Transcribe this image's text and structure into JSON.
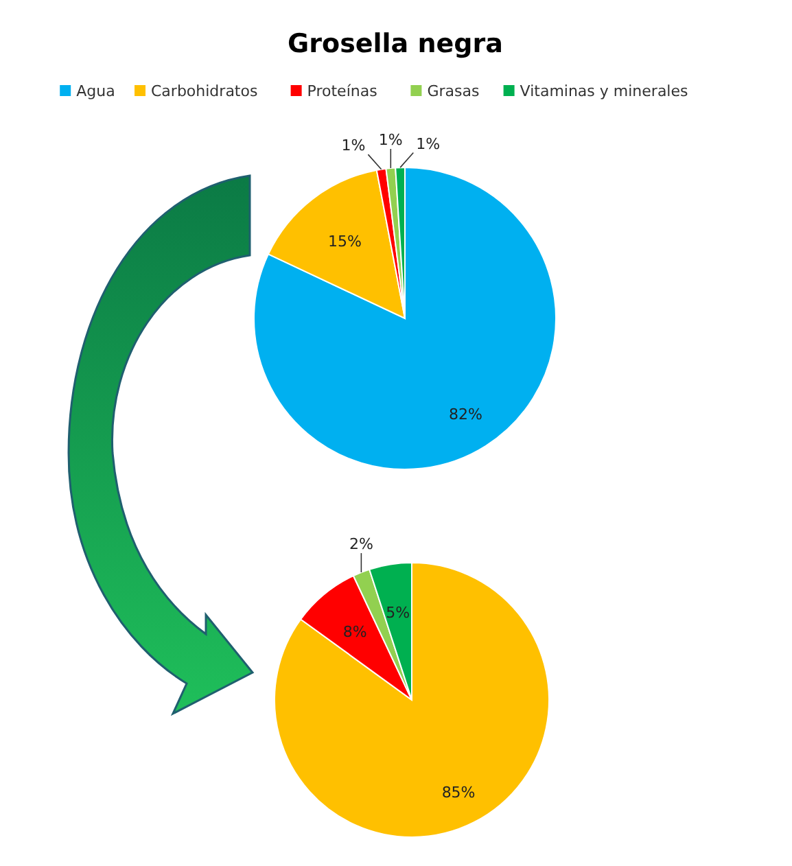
{
  "chart_data": [
    {
      "type": "pie",
      "title": "Grosella negra",
      "categories": [
        "Agua",
        "Carbohidratos",
        "Proteínas",
        "Grasas",
        "Vitaminas y minerales"
      ],
      "values": [
        82,
        15,
        1,
        1,
        1
      ],
      "colors": [
        "#00b0f0",
        "#ffc000",
        "#ff0000",
        "#92d050",
        "#00b050"
      ],
      "value_labels": [
        "82%",
        "15%",
        "1%",
        "1%",
        "1%"
      ],
      "legend": "top"
    },
    {
      "type": "pie",
      "categories": [
        null,
        null,
        null,
        null
      ],
      "values": [
        85,
        8,
        2,
        5
      ],
      "colors": [
        "#ffc000",
        "#ff0000",
        "#92d050",
        "#00b050"
      ],
      "value_labels": [
        "85%",
        "8%",
        "2%",
        "5%"
      ]
    }
  ]
}
